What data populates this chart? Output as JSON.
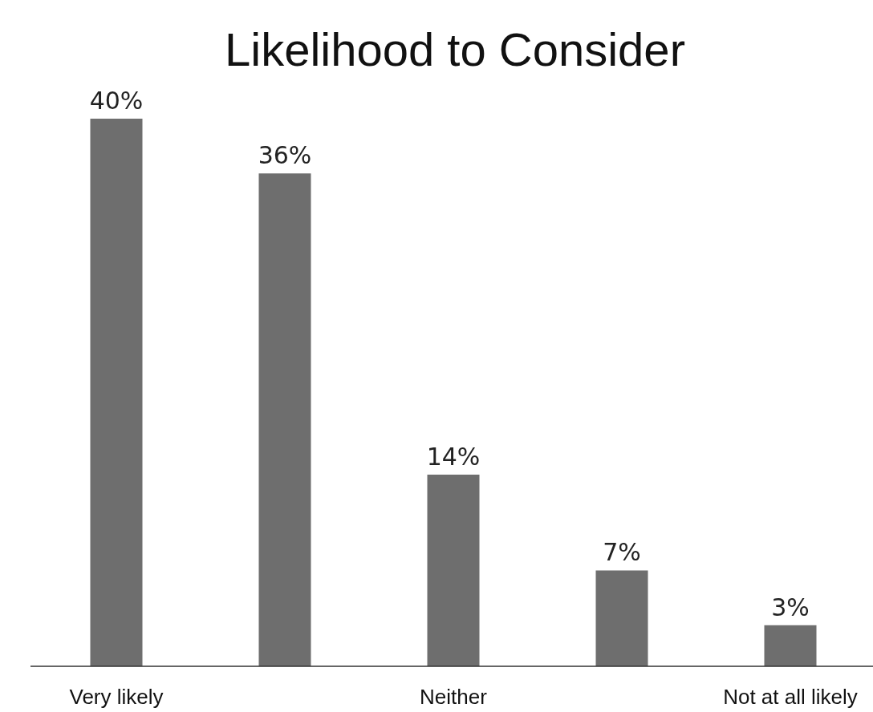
{
  "chart_data": {
    "type": "bar",
    "title": "Likelihood to Consider",
    "categories": [
      "Very likely",
      null,
      "Neither",
      null,
      "Not at all likely"
    ],
    "values": [
      40,
      36,
      14,
      7,
      3
    ],
    "value_labels": [
      "40%",
      "36%",
      "14%",
      "7%",
      "3%"
    ],
    "color": "#6e6e6e"
  }
}
